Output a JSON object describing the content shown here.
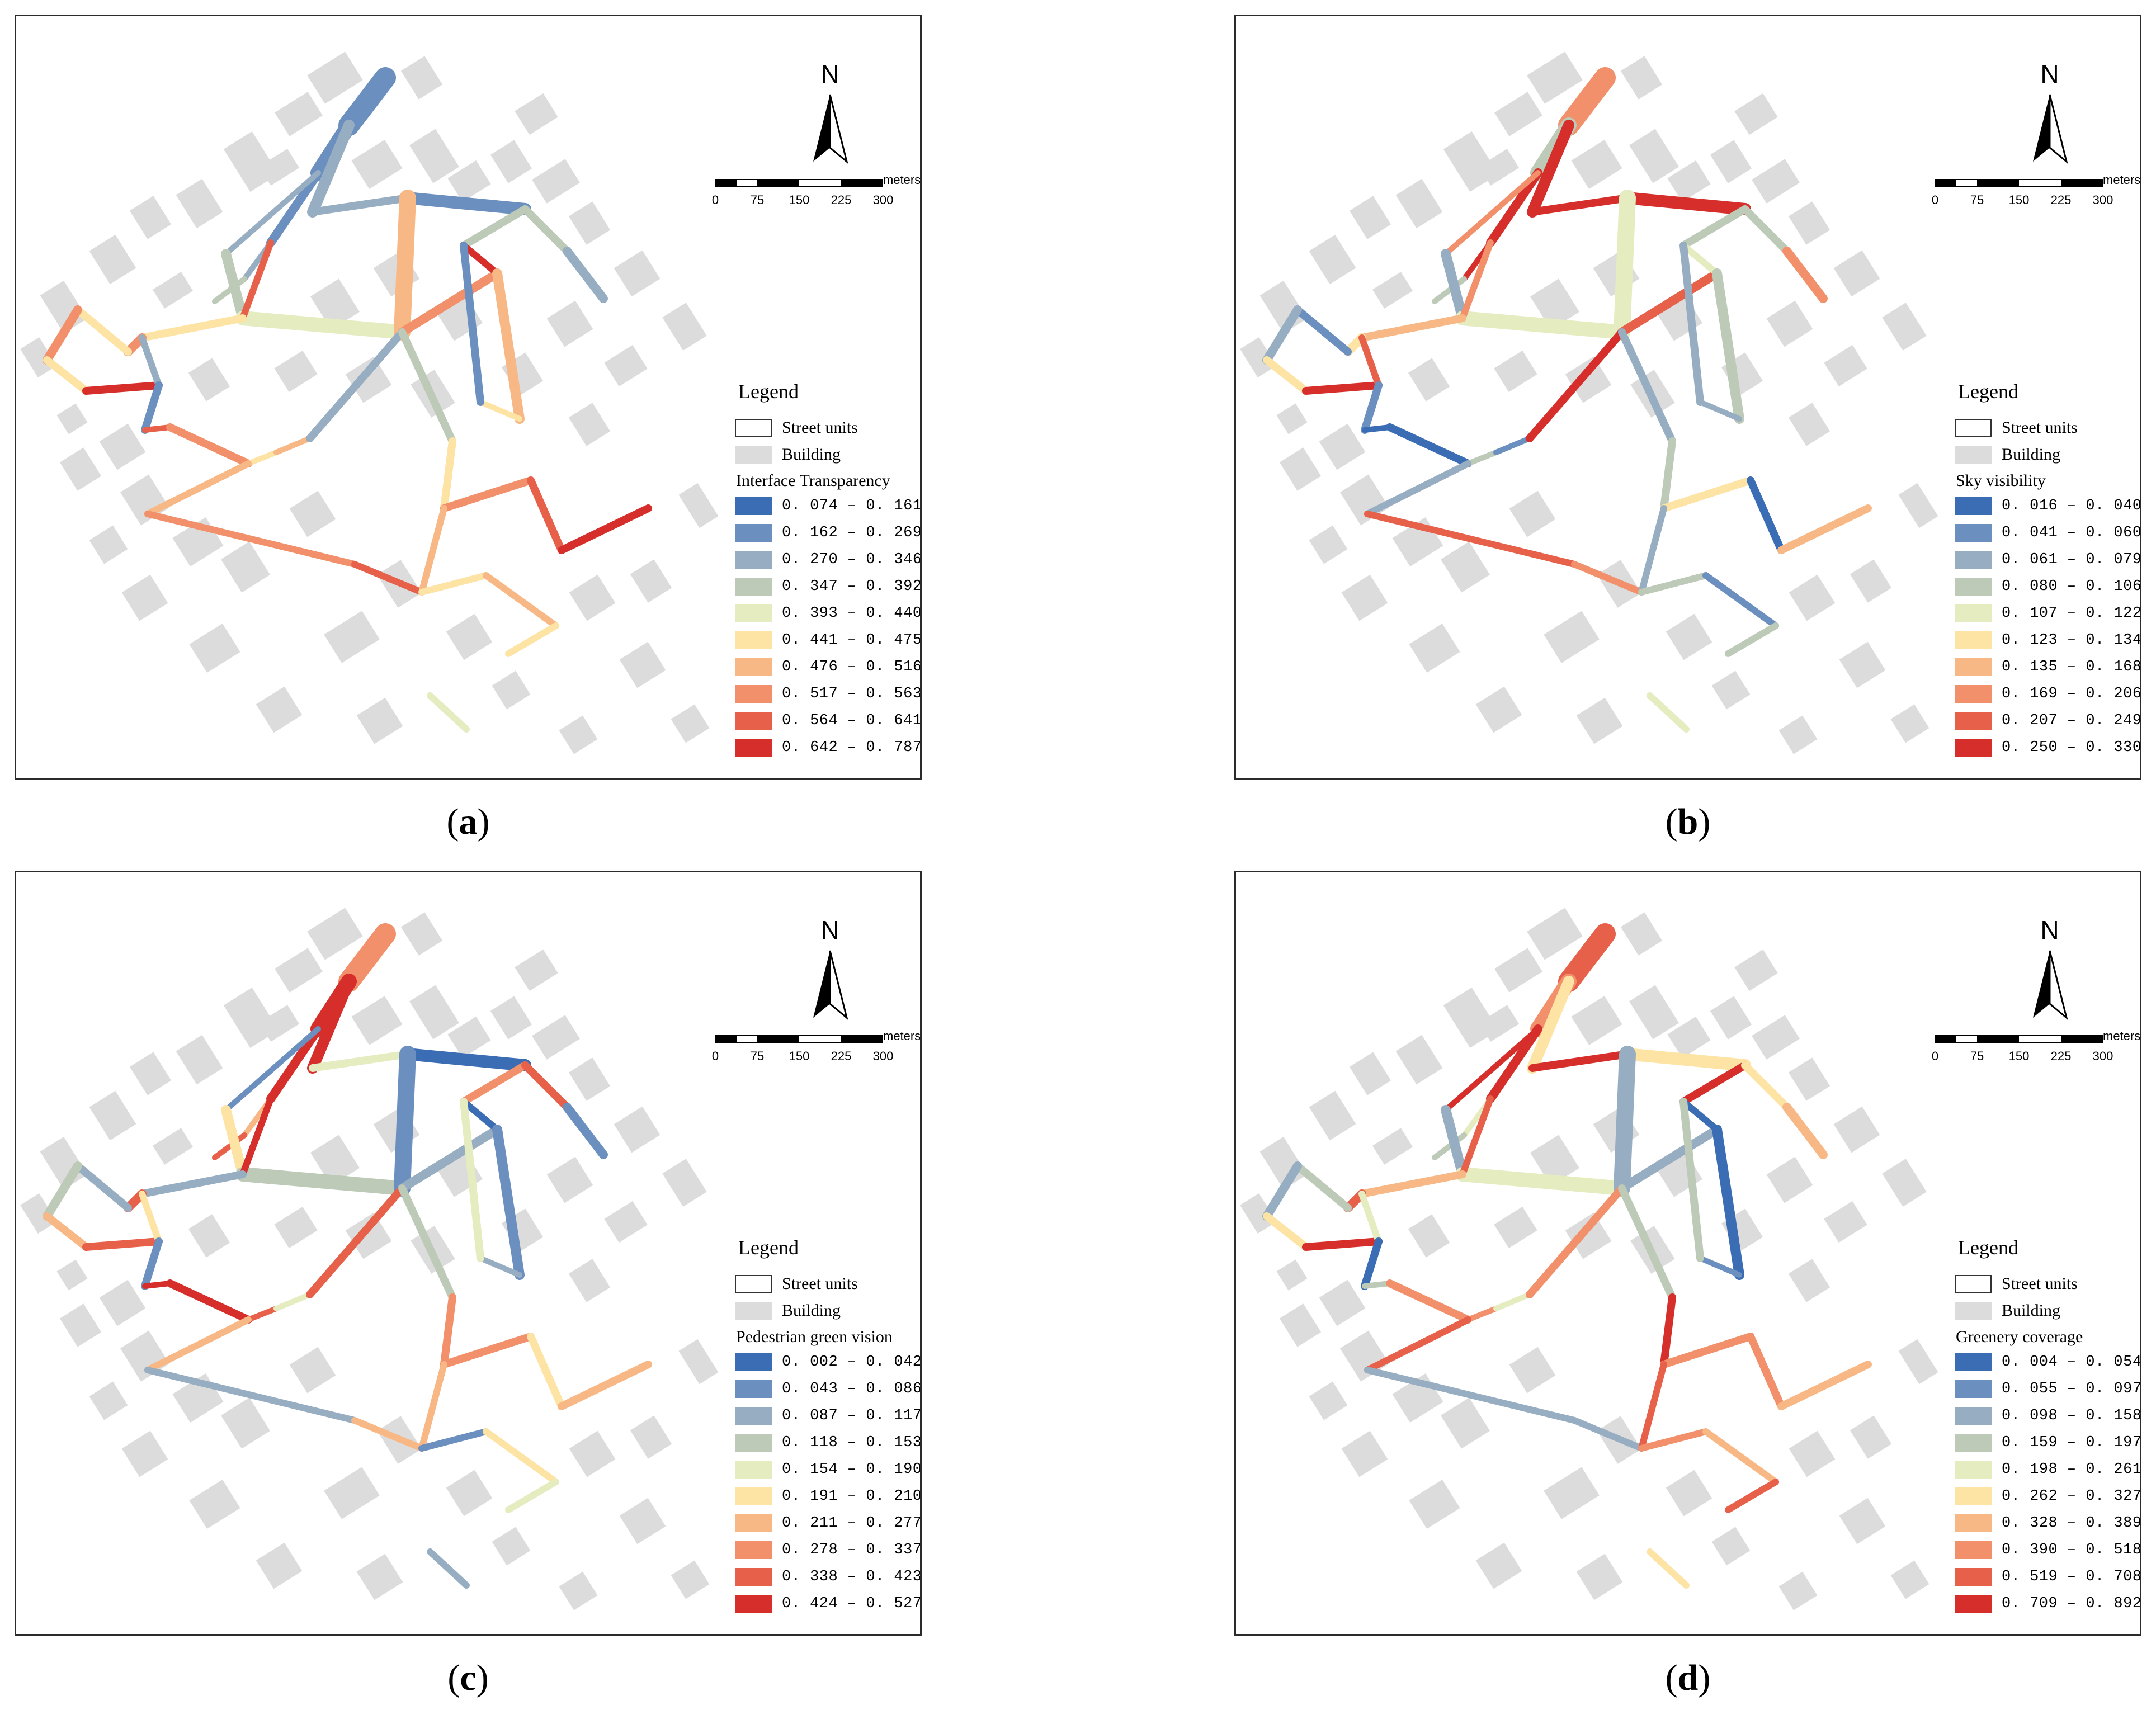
{
  "legend_title": "Legend",
  "street_units_label": "Street units",
  "building_label": "Building",
  "north_label": "N",
  "scale": {
    "units": "meters",
    "ticks": [
      "0",
      "75",
      "150",
      "225",
      "300"
    ]
  },
  "ramp_colors": [
    "#3b6db5",
    "#6b8fbf",
    "#97aec2",
    "#bccab7",
    "#e5ecc0",
    "#fde3a4",
    "#f8b886",
    "#f1906a",
    "#e7604a",
    "#d62f2b"
  ],
  "building_color": "#dcdcdc",
  "panels": [
    {
      "id": "a",
      "caption_letter": "a",
      "indicator": "Interface Transparency",
      "classes": [
        "0. 074 – 0. 161",
        "0. 162 – 0. 269",
        "0. 270 – 0. 346",
        "0. 347 – 0. 392",
        "0. 393 – 0. 440",
        "0. 441 – 0. 475",
        "0. 476 – 0. 516",
        "0. 517 – 0. 563",
        "0. 564 – 0. 641",
        "0. 642 – 0. 787"
      ],
      "street_classes": [
        1,
        1,
        1,
        2,
        2,
        1,
        3,
        3,
        2,
        2,
        2,
        3,
        3,
        4,
        8,
        6,
        7,
        9,
        6,
        5,
        1,
        5,
        7,
        5,
        7,
        5,
        9,
        2,
        1,
        8,
        7,
        5,
        6,
        2,
        6,
        7,
        8,
        3,
        5,
        7,
        8,
        9,
        6,
        5,
        6,
        5,
        4
      ]
    },
    {
      "id": "b",
      "caption_letter": "b",
      "indicator": "Sky visibility",
      "classes": [
        "0. 016 – 0. 040",
        "0. 041 – 0. 060",
        "0. 061 – 0. 079",
        "0. 080 – 0. 106",
        "0. 107 – 0. 122",
        "0. 123 – 0. 134",
        "0. 135 – 0. 168",
        "0. 169 – 0. 206",
        "0. 207 – 0. 249",
        "0. 250 – 0. 330"
      ],
      "street_classes": [
        7,
        3,
        9,
        9,
        9,
        9,
        3,
        3,
        7,
        7,
        9,
        3,
        2,
        4,
        7,
        4,
        8,
        4,
        3,
        2,
        2,
        6,
        5,
        1,
        2,
        5,
        9,
        8,
        1,
        0,
        0,
        3,
        1,
        9,
        2,
        8,
        7,
        2,
        3,
        5,
        0,
        6,
        2,
        3,
        1,
        3,
        4
      ]
    },
    {
      "id": "c",
      "caption_letter": "c",
      "indicator": "Pedestrian green vision",
      "classes": [
        "0. 002 – 0. 042",
        "0. 043 – 0. 086",
        "0. 087 – 0. 117",
        "0. 118 – 0. 153",
        "0. 154 – 0. 190",
        "0. 191 – 0. 210",
        "0. 211 – 0. 277",
        "0. 278 – 0. 337",
        "0. 338 – 0. 423",
        "0. 424 – 0. 527"
      ],
      "street_classes": [
        7,
        9,
        9,
        9,
        4,
        0,
        7,
        8,
        1,
        1,
        6,
        8,
        5,
        3,
        9,
        1,
        2,
        0,
        1,
        2,
        4,
        2,
        8,
        2,
        3,
        6,
        8,
        5,
        1,
        9,
        9,
        8,
        4,
        8,
        6,
        2,
        6,
        3,
        7,
        7,
        5,
        6,
        6,
        1,
        5,
        4,
        2
      ]
    },
    {
      "id": "d",
      "caption_letter": "d",
      "indicator": "Greenery coverage",
      "classes": [
        "0. 004 – 0. 054",
        "0. 055 – 0. 097",
        "0. 098 – 0. 158",
        "0. 159 – 0. 197",
        "0. 198 – 0. 261",
        "0. 262 – 0. 327",
        "0. 328 – 0. 389",
        "0. 390 – 0. 518",
        "0. 519 – 0. 708",
        "0. 709 – 0. 892"
      ],
      "street_classes": [
        8,
        7,
        9,
        5,
        9,
        5,
        9,
        5,
        6,
        9,
        4,
        3,
        2,
        4,
        8,
        2,
        2,
        0,
        0,
        1,
        3,
        6,
        8,
        3,
        2,
        5,
        9,
        4,
        0,
        3,
        7,
        7,
        4,
        7,
        8,
        2,
        2,
        3,
        9,
        7,
        7,
        6,
        8,
        7,
        6,
        8,
        5
      ]
    }
  ]
}
